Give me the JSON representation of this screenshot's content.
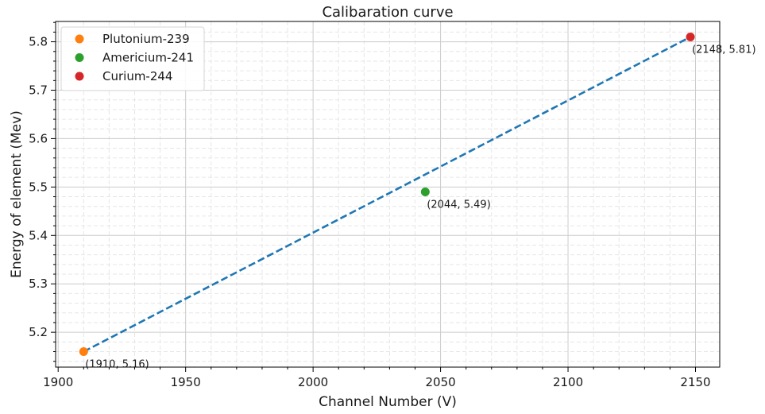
{
  "chart_data": {
    "type": "scatter",
    "title": "Calibaration curve",
    "xlabel": "Channel Number (V)",
    "ylabel": "Energy of element (Mev)",
    "xlim": [
      1899,
      2159.5
    ],
    "ylim": [
      5.128,
      5.842
    ],
    "xticks": [
      1900,
      1950,
      2000,
      2050,
      2100,
      2150
    ],
    "yticks": [
      5.2,
      5.3,
      5.4,
      5.5,
      5.6,
      5.7,
      5.8
    ],
    "xtick_labels": [
      "1900",
      "1950",
      "2000",
      "2050",
      "2100",
      "2150"
    ],
    "ytick_labels": [
      "5.2",
      "5.3",
      "5.4",
      "5.5",
      "5.6",
      "5.7",
      "5.8"
    ],
    "grid": {
      "major": true,
      "minor": true,
      "minor_style": "dashed"
    },
    "legend_position": "top-left",
    "series": [
      {
        "name": "Plutonium-239",
        "color": "#ff7f0e",
        "x": [
          1910
        ],
        "y": [
          5.16
        ],
        "label": "(1910, 5.16)"
      },
      {
        "name": "Americium-241",
        "color": "#2ca02c",
        "x": [
          2044
        ],
        "y": [
          5.49
        ],
        "label": "(2044, 5.49)"
      },
      {
        "name": "Curium-244",
        "color": "#d62728",
        "x": [
          2148
        ],
        "y": [
          5.81
        ],
        "label": "(2148, 5.81)"
      }
    ],
    "fit_line": {
      "color": "#1f77b4",
      "style": "dashed",
      "x": [
        1910,
        2148
      ],
      "y": [
        5.16,
        5.81
      ]
    }
  }
}
